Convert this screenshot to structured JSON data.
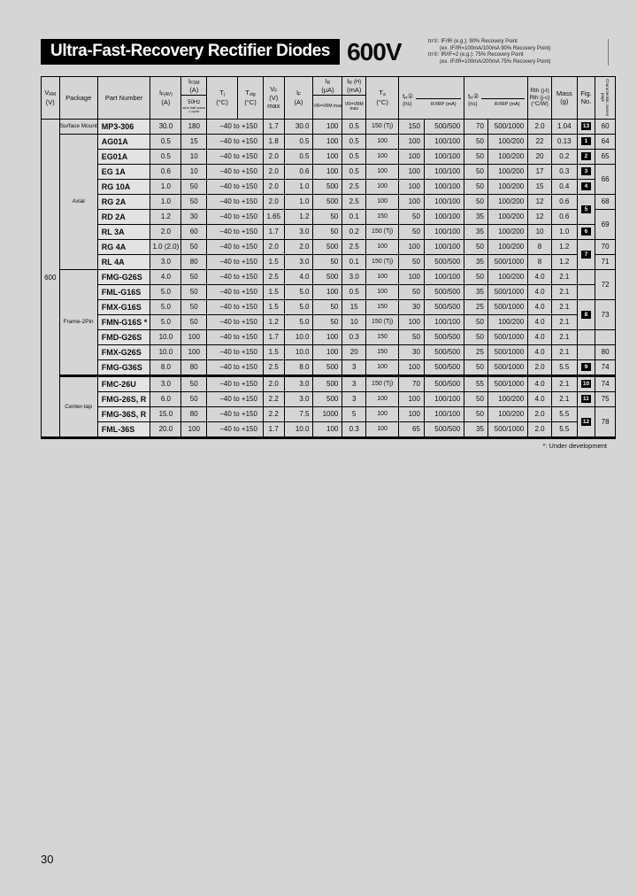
{
  "page": {
    "number": "30",
    "footnote": "*: Under development"
  },
  "header": {
    "title": "Ultra-Fast-Recovery Rectifier Diodes",
    "voltage": "600V",
    "notes": [
      {
        "l1": "trr①: IF/IR (e.g.): 90% Recovery Point",
        "l2": "(ex. IF/IR=100mA/100mA 90% Recovery Point)"
      },
      {
        "l1": "trr②: IR/IF=2 (e.g.): 75% Recovery Point",
        "l2": "(ex. IF/IR=100mA/200mA 75% Recovery Point)"
      }
    ]
  },
  "table": {
    "vrm": "600",
    "tjRange": "−40 to +150",
    "cols": {
      "vrm": {
        "t": "V",
        "s": "RM",
        "u": "(V)"
      },
      "package": "Package",
      "part": "Part Number",
      "ifav": {
        "t": "I",
        "s": "F(AV)",
        "u": "(A)"
      },
      "ifsm": {
        "t": "I",
        "s": "FSM",
        "u": "(A)",
        "c1": "50Hz",
        "c2": "sine half-wave",
        "c3": "1 cycle"
      },
      "tj": {
        "t": "T",
        "s": "j",
        "u": "(°C)"
      },
      "tstg": {
        "t": "T",
        "s": "stg",
        "u": "(°C)"
      },
      "vf": {
        "t": "V",
        "s": "F",
        "u": "(V)",
        "m": "max"
      },
      "iff": {
        "t": "I",
        "s": "F",
        "u": "(A)"
      },
      "ir": {
        "t": "I",
        "s": "R",
        "u": "(μA)",
        "cond": "VR=VRM max"
      },
      "irh": {
        "t": "I",
        "s": "R",
        "x": "(H)",
        "u": "(mA)",
        "cond": "VR=VRM max"
      },
      "ta": {
        "t": "T",
        "s": "a",
        "u": "(°C)"
      },
      "t1": {
        "t": "t",
        "s": "rr",
        "m": "①",
        "u": "(ns)",
        "cond": "IF/IRP (mA)"
      },
      "t2": {
        "t": "t",
        "s": "rr",
        "m": "②",
        "u": "(ns)",
        "cond": "IF/IRP (mA)"
      },
      "rth": {
        "l1": "Rth (j-l)",
        "l2": "Rth (j-c)",
        "u": "(°C/W)"
      },
      "mass": {
        "l": "Mass",
        "u": "(g)"
      },
      "fig": {
        "l1": "Fig.",
        "l2": "No."
      },
      "pagecol": {
        "label": "Characteristic curves page"
      }
    },
    "rows": [
      {
        "pkg": "Surface Mount",
        "pkgs": 1,
        "pn": "MP3-306",
        "ifav": "30.0",
        "ifsm": "180",
        "vf": "1.7",
        "iff": "30.0",
        "ir": "100",
        "irh": "0.5",
        "ta": "150 (Tj)",
        "t1": "150",
        "t1i": "500/500",
        "t2": "70",
        "t2i": "500/1000",
        "rth": "2.0",
        "mass": "1.04",
        "fig": "13",
        "figs": 1,
        "page": "60",
        "pages": 1
      },
      {
        "pkg": "Axial",
        "pkgs": 9,
        "pn": "AG01A",
        "ifav": "0.5",
        "ifsm": "15",
        "vf": "1.8",
        "iff": "0.5",
        "ir": "100",
        "irh": "0.5",
        "ta": "100",
        "t1": "100",
        "t1i": "100/100",
        "t2": "50",
        "t2i": "100/200",
        "rth": "22",
        "mass": "0.13",
        "fig": "1",
        "figs": 1,
        "page": "64",
        "pages": 1
      },
      {
        "pn": "EG01A",
        "ifav": "0.5",
        "ifsm": "10",
        "vf": "2.0",
        "iff": "0.5",
        "ir": "100",
        "irh": "0.5",
        "ta": "100",
        "t1": "100",
        "t1i": "100/100",
        "t2": "50",
        "t2i": "100/200",
        "rth": "20",
        "mass": "0.2",
        "fig": "2",
        "figs": 1,
        "page": "65",
        "pages": 1
      },
      {
        "pn": "EG 1A",
        "ifav": "0.6",
        "ifsm": "10",
        "vf": "2.0",
        "iff": "0.6",
        "ir": "100",
        "irh": "0.5",
        "ta": "100",
        "t1": "100",
        "t1i": "100/100",
        "t2": "50",
        "t2i": "100/200",
        "rth": "17",
        "mass": "0.3",
        "fig": "3",
        "figs": 1,
        "page": "66",
        "pages": 2
      },
      {
        "pn": "RG 10A",
        "ifav": "1.0",
        "ifsm": "50",
        "vf": "2.0",
        "iff": "1.0",
        "ir": "500",
        "irh": "2.5",
        "ta": "100",
        "t1": "100",
        "t1i": "100/100",
        "t2": "50",
        "t2i": "100/200",
        "rth": "15",
        "mass": "0.4",
        "fig": "4",
        "figs": 1,
        "page": null
      },
      {
        "pn": "RG 2A",
        "ifav": "1.0",
        "ifsm": "50",
        "vf": "2.0",
        "iff": "1.0",
        "ir": "500",
        "irh": "2.5",
        "ta": "100",
        "t1": "100",
        "t1i": "100/100",
        "t2": "50",
        "t2i": "100/200",
        "rth": "12",
        "mass": "0.6",
        "fig": "5",
        "figs": 2,
        "page": "68",
        "pages": 1
      },
      {
        "pn": "RD 2A",
        "ifav": "1.2",
        "ifsm": "30",
        "vf": "1.65",
        "iff": "1.2",
        "ir": "50",
        "irh": "0.1",
        "ta": "150",
        "t1": "50",
        "t1i": "100/100",
        "t2": "35",
        "t2i": "100/200",
        "rth": "12",
        "mass": "0.6",
        "fig": null,
        "page": "69",
        "pages": 2
      },
      {
        "pn": "RL 3A",
        "ifav": "2.0",
        "ifsm": "60",
        "vf": "1.7",
        "iff": "3.0",
        "ir": "50",
        "irh": "0.2",
        "ta": "150 (Tj)",
        "t1": "50",
        "t1i": "100/100",
        "t2": "35",
        "t2i": "100/200",
        "rth": "10",
        "mass": "1.0",
        "fig": "6",
        "figs": 1,
        "page": null
      },
      {
        "pn": "RG 4A",
        "ifav": "1.0 (2.0)",
        "ifsm": "50",
        "vf": "2.0",
        "iff": "2.0",
        "ir": "500",
        "irh": "2.5",
        "ta": "100",
        "t1": "100",
        "t1i": "100/100",
        "t2": "50",
        "t2i": "100/200",
        "rth": "8",
        "mass": "1.2",
        "fig": "7",
        "figs": 2,
        "page": "70",
        "pages": 1
      },
      {
        "pn": "RL 4A",
        "ifav": "3.0",
        "ifsm": "80",
        "vf": "1.5",
        "iff": "3.0",
        "ir": "50",
        "irh": "0.1",
        "ta": "150 (Tj)",
        "t1": "50",
        "t1i": "500/500",
        "t2": "35",
        "t2i": "500/1000",
        "rth": "8",
        "mass": "1.2",
        "fig": null,
        "page": "71",
        "pages": 1
      },
      {
        "pkg": "Frame-2Pin",
        "pkgs": 7,
        "pn": "FMG-G26S",
        "ifav": "4.0",
        "ifsm": "50",
        "vf": "2.5",
        "iff": "4.0",
        "ir": "500",
        "irh": "3.0",
        "ta": "100",
        "t1": "100",
        "t1i": "100/100",
        "t2": "50",
        "t2i": "100/200",
        "rth": "4.0",
        "mass": "2.1",
        "fig": "",
        "figs": 1,
        "page": "72",
        "pages": 2
      },
      {
        "pn": "FML-G16S",
        "ifav": "5.0",
        "ifsm": "50",
        "vf": "1.5",
        "iff": "5.0",
        "ir": "100",
        "irh": "0.5",
        "ta": "100",
        "t1": "50",
        "t1i": "500/500",
        "t2": "35",
        "t2i": "500/1000",
        "rth": "4.0",
        "mass": "2.1",
        "fig": "",
        "figs": 1,
        "page": null
      },
      {
        "pn": "FMX-G16S",
        "ifav": "5.0",
        "ifsm": "50",
        "vf": "1.5",
        "iff": "5.0",
        "ir": "50",
        "irh": "15",
        "ta": "150",
        "t1": "30",
        "t1i": "500/500",
        "t2": "25",
        "t2i": "500/1000",
        "rth": "4.0",
        "mass": "2.1",
        "fig": "8",
        "figs": 2,
        "page": "73",
        "pages": 2
      },
      {
        "pn": "FMN-G16S *",
        "ifav": "5.0",
        "ifsm": "50",
        "vf": "1.2",
        "iff": "5.0",
        "ir": "50",
        "irh": "10",
        "ta": "150 (Tj)",
        "t1": "100",
        "t1i": "100/100",
        "t2": "50",
        "t2i": "100/200",
        "rth": "4.0",
        "mass": "2.1",
        "fig": null,
        "page": null
      },
      {
        "pn": "FMD-G26S",
        "ifav": "10.0",
        "ifsm": "100",
        "vf": "1.7",
        "iff": "10.0",
        "ir": "100",
        "irh": "0.3",
        "ta": "150",
        "t1": "50",
        "t1i": "500/500",
        "t2": "50",
        "t2i": "500/1000",
        "rth": "4.0",
        "mass": "2.1",
        "fig": "",
        "figs": 1,
        "page": "",
        "pages": 1
      },
      {
        "pn": "FMX-G26S",
        "ifav": "10.0",
        "ifsm": "100",
        "vf": "1.5",
        "iff": "10.0",
        "ir": "100",
        "irh": "20",
        "ta": "150",
        "t1": "30",
        "t1i": "500/500",
        "t2": "25",
        "t2i": "500/1000",
        "rth": "4.0",
        "mass": "2.1",
        "fig": "",
        "figs": 1,
        "page": "80",
        "pages": 1
      },
      {
        "pn": "FMG-G36S",
        "ifav": "8.0",
        "ifsm": "80",
        "vf": "2.5",
        "iff": "8.0",
        "ir": "500",
        "irh": "3",
        "ta": "100",
        "t1": "100",
        "t1i": "500/500",
        "t2": "50",
        "t2i": "500/1000",
        "rth": "2.0",
        "mass": "5.5",
        "fig": "9",
        "figs": 1,
        "page": "74",
        "pages": 1
      },
      {
        "pkg": "Center-tap",
        "pkgs": 4,
        "thick": true,
        "pn": "FMC-26U",
        "ifav": "3.0",
        "ifsm": "50",
        "vf": "2.0",
        "iff": "3.0",
        "ir": "500",
        "irh": "3",
        "ta": "150 (Tj)",
        "t1": "70",
        "t1i": "500/500",
        "t2": "55",
        "t2i": "500/1000",
        "rth": "4.0",
        "mass": "2.1",
        "fig": "10",
        "figs": 1,
        "page": "74",
        "pages": 1
      },
      {
        "pn": "FMG-26S, R",
        "ifav": "6.0",
        "ifsm": "50",
        "vf": "2.2",
        "iff": "3.0",
        "ir": "500",
        "irh": "3",
        "ta": "100",
        "t1": "100",
        "t1i": "100/100",
        "t2": "50",
        "t2i": "100/200",
        "rth": "4.0",
        "mass": "2.1",
        "fig": "11",
        "figs": 1,
        "page": "75",
        "pages": 1
      },
      {
        "pn": "FMG-36S, R",
        "ifav": "15.0",
        "ifsm": "80",
        "vf": "2.2",
        "iff": "7.5",
        "ir": "1000",
        "irh": "5",
        "ta": "100",
        "t1": "100",
        "t1i": "100/100",
        "t2": "50",
        "t2i": "100/200",
        "rth": "2.0",
        "mass": "5.5",
        "fig": "12",
        "figs": 2,
        "page": "78",
        "pages": 2
      },
      {
        "pn": "FML-36S",
        "ifav": "20.0",
        "ifsm": "100",
        "vf": "1.7",
        "iff": "10.0",
        "ir": "100",
        "irh": "0.3",
        "ta": "100",
        "t1": "65",
        "t1i": "500/500",
        "t2": "35",
        "t2i": "500/1000",
        "rth": "2.0",
        "mass": "5.5",
        "fig": null,
        "page": null
      }
    ]
  }
}
